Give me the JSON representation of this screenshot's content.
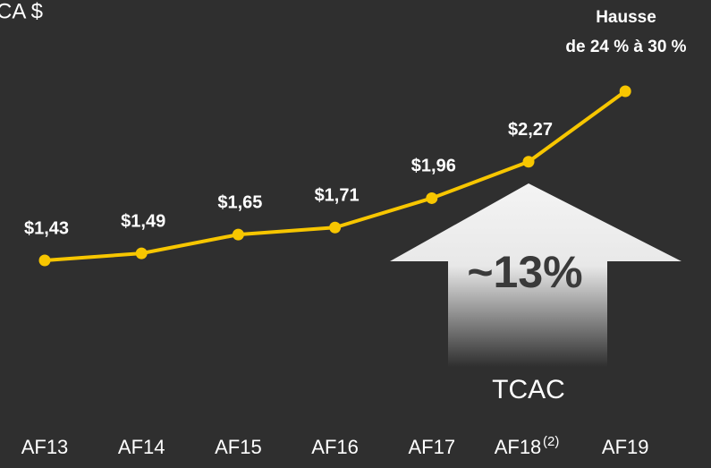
{
  "chart_data": {
    "type": "line",
    "title": "CA $",
    "categories": [
      "AF13",
      "AF14",
      "AF15",
      "AF16",
      "AF17",
      "AF18",
      "AF19"
    ],
    "category_marks": [
      null,
      null,
      null,
      null,
      null,
      "(2)",
      null
    ],
    "values": [
      1.43,
      1.49,
      1.65,
      1.71,
      1.96,
      2.27,
      2.87
    ],
    "value_labels": [
      "$1,43",
      "$1,49",
      "$1,65",
      "$1,71",
      "$1,96",
      "$2,27",
      null
    ],
    "color": "#f7c600",
    "annotations": {
      "increase": [
        "Hausse",
        "de 24 % à 30 %"
      ],
      "cagr_value": "~13%",
      "cagr_label": "TCAC"
    }
  }
}
